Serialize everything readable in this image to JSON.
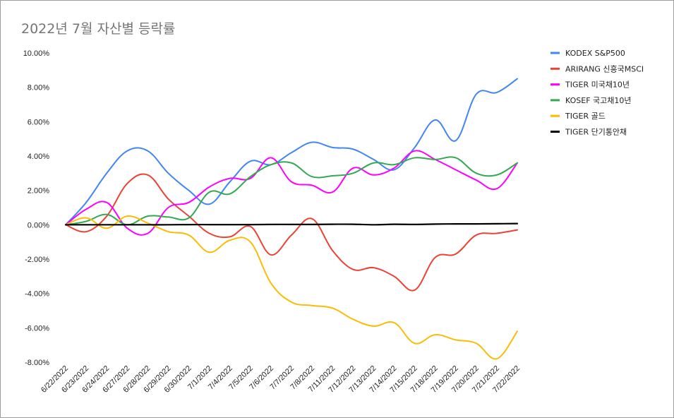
{
  "chart_data": {
    "type": "line",
    "title": "2022년 7월 자산별 등락률",
    "xlabel": "",
    "ylabel": "",
    "ylim": [
      -8,
      10
    ],
    "yticks": [
      "10.00%",
      "8.00%",
      "6.00%",
      "4.00%",
      "2.00%",
      "0.00%",
      "-2.00%",
      "-4.00%",
      "-6.00%",
      "-8.00%"
    ],
    "categories": [
      "6/22/2022",
      "6/23/2022",
      "6/24/2022",
      "6/27/2022",
      "6/28/2022",
      "6/29/2022",
      "6/30/2022",
      "7/1/2022",
      "7/4/2022",
      "7/5/2022",
      "7/6/2022",
      "7/7/2022",
      "7/8/2022",
      "7/11/2022",
      "7/12/2022",
      "7/13/2022",
      "7/14/2022",
      "7/15/2022",
      "7/18/2022",
      "7/19/2022",
      "7/20/2022",
      "7/21/2022",
      "7/22/2022"
    ],
    "grid": false,
    "legend_position": "right",
    "series": [
      {
        "name": "KODEX S&P500",
        "color": "#4285f4",
        "values": [
          0,
          1.3,
          3.0,
          4.3,
          4.3,
          3.0,
          2.0,
          1.2,
          2.5,
          3.7,
          3.5,
          4.2,
          4.8,
          4.5,
          4.4,
          3.8,
          3.2,
          4.5,
          6.1,
          4.9,
          7.6,
          7.7,
          8.5
        ]
      },
      {
        "name": "ARIRANG 신흥국MSCI",
        "color": "#ea4335",
        "values": [
          0,
          -0.4,
          0.5,
          2.4,
          2.9,
          1.5,
          0.5,
          -0.5,
          -0.7,
          -0.1,
          -1.75,
          -0.6,
          0.35,
          -1.5,
          -2.6,
          -2.5,
          -3.0,
          -3.8,
          -1.9,
          -1.7,
          -0.6,
          -0.5,
          -0.3
        ]
      },
      {
        "name": "TIGER 미국채10년",
        "color": "#ff00ff",
        "values": [
          0,
          0.9,
          1.3,
          -0.2,
          -0.5,
          1.0,
          1.3,
          2.2,
          2.7,
          2.7,
          3.9,
          2.5,
          2.3,
          1.9,
          3.3,
          2.9,
          3.3,
          4.3,
          3.8,
          3.2,
          2.6,
          2.1,
          3.6
        ]
      },
      {
        "name": "KOSEF 국고채10년",
        "color": "#34a853",
        "values": [
          0,
          0.2,
          0.6,
          0.0,
          0.5,
          0.45,
          0.4,
          1.9,
          1.8,
          2.8,
          3.5,
          3.6,
          2.8,
          2.85,
          3.0,
          3.6,
          3.5,
          3.9,
          3.8,
          3.9,
          3.0,
          2.9,
          3.6
        ]
      },
      {
        "name": "TIGER 골드",
        "color": "#fbbc04",
        "values": [
          0,
          0.4,
          -0.2,
          0.5,
          0.1,
          -0.4,
          -0.6,
          -1.6,
          -0.9,
          -1.0,
          -3.4,
          -4.5,
          -4.7,
          -4.85,
          -5.5,
          -5.9,
          -5.7,
          -6.9,
          -6.4,
          -6.7,
          -6.9,
          -7.8,
          -6.2
        ]
      },
      {
        "name": "TIGER 단기통안채",
        "color": "#000000",
        "values": [
          0,
          0.0,
          0.0,
          0.0,
          0.0,
          0.0,
          0.01,
          0.01,
          0.01,
          0.01,
          0.02,
          0.02,
          0.02,
          0.03,
          0.03,
          0.0,
          0.03,
          0.02,
          0.04,
          0.05,
          0.05,
          0.06,
          0.07
        ]
      }
    ]
  }
}
